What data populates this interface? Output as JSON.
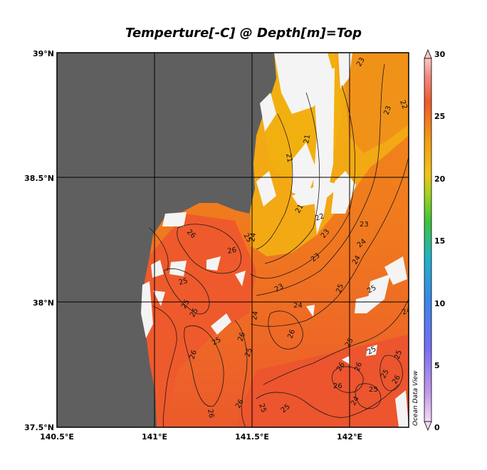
{
  "title": "Temperture[-C] @ Depth[m]=Top",
  "watermark": "Ocean Data View",
  "colors": {
    "land": "#5f5f5f",
    "no_data": "#f4f4f4",
    "warm": "#ee5530",
    "mid": "#f08a18",
    "cool": "#f3a914",
    "grid": "#000000"
  },
  "axes": {
    "lon_ticks": [
      "140.5°E",
      "141°E",
      "141.5°E",
      "142°E"
    ],
    "lat_ticks": [
      "39°N",
      "38.5°N",
      "38°N",
      "37.5°N"
    ]
  },
  "colorbar": {
    "ticks": [
      "30",
      "25",
      "20",
      "15",
      "10",
      "5",
      "0"
    ]
  },
  "contour_labels": [
    {
      "id": "c1",
      "text": "23"
    },
    {
      "id": "c2",
      "text": "22"
    },
    {
      "id": "c3",
      "text": "23"
    },
    {
      "id": "c4",
      "text": "21"
    },
    {
      "id": "c5",
      "text": "21"
    },
    {
      "id": "c6",
      "text": "21"
    },
    {
      "id": "c7",
      "text": "22"
    },
    {
      "id": "c8",
      "text": "23"
    },
    {
      "id": "c9",
      "text": "23"
    },
    {
      "id": "c10",
      "text": "24"
    },
    {
      "id": "c11",
      "text": "23"
    },
    {
      "id": "c12",
      "text": "26"
    },
    {
      "id": "c13",
      "text": "26"
    },
    {
      "id": "c14",
      "text": "25"
    },
    {
      "id": "c15",
      "text": "25"
    },
    {
      "id": "c16",
      "text": "23"
    },
    {
      "id": "c17",
      "text": "25"
    },
    {
      "id": "c18",
      "text": "24"
    },
    {
      "id": "c19",
      "text": "24"
    },
    {
      "id": "c20",
      "text": "24"
    },
    {
      "id": "c21",
      "text": "24"
    },
    {
      "id": "c22",
      "text": "25"
    },
    {
      "id": "c23",
      "text": "25"
    },
    {
      "id": "c24",
      "text": "25"
    },
    {
      "id": "c25",
      "text": "26"
    },
    {
      "id": "c26",
      "text": "25"
    },
    {
      "id": "c27",
      "text": "25"
    },
    {
      "id": "c28",
      "text": "26"
    },
    {
      "id": "c29",
      "text": "26"
    },
    {
      "id": "c30",
      "text": "25"
    },
    {
      "id": "c31",
      "text": "25"
    },
    {
      "id": "c32",
      "text": "26"
    },
    {
      "id": "c33",
      "text": "26"
    },
    {
      "id": "c34",
      "text": "25"
    },
    {
      "id": "c35",
      "text": "26"
    },
    {
      "id": "c36",
      "text": "25"
    },
    {
      "id": "c37",
      "text": "26"
    },
    {
      "id": "c38",
      "text": "26"
    },
    {
      "id": "c39",
      "text": "25"
    },
    {
      "id": "c40",
      "text": "25"
    },
    {
      "id": "c41",
      "text": "24"
    },
    {
      "id": "c42",
      "text": "26"
    },
    {
      "id": "c43",
      "text": "25"
    },
    {
      "id": "c44",
      "text": "24"
    }
  ]
}
